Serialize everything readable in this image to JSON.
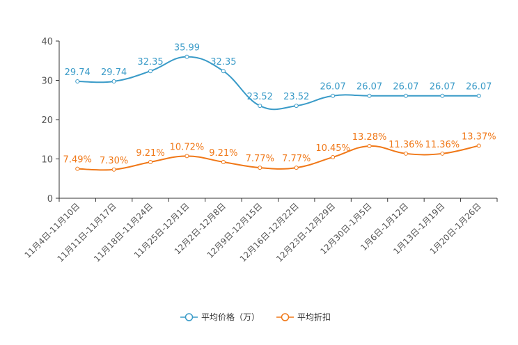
{
  "chart_data": {
    "type": "line",
    "title": "",
    "xlabel": "",
    "ylabel": "",
    "ylim": [
      0,
      40
    ],
    "yticks": [
      0,
      10,
      20,
      30,
      40
    ],
    "grid": false,
    "legend_position": "bottom-center",
    "categories": [
      "11月4日-11月10日",
      "11月11日-11月17日",
      "11月18日-11月24日",
      "11月25日-12月1日",
      "12月2日-12月8日",
      "12月9日-12月15日",
      "12月16日-12月22日",
      "12月23日-12月29日",
      "12月30日-1月5日",
      "1月6日-1月12日",
      "1月13日-1月19日",
      "1月20日-1月26日"
    ],
    "series": [
      {
        "name": "平均价格（万）",
        "color": "#3a9bc8",
        "values": [
          29.74,
          29.74,
          32.35,
          35.99,
          32.35,
          23.52,
          23.52,
          26.07,
          26.07,
          26.07,
          26.07,
          26.07
        ],
        "labels": [
          "29.74",
          "29.74",
          "32.35",
          "35.99",
          "32.35",
          "23.52",
          "23.52",
          "26.07",
          "26.07",
          "26.07",
          "26.07",
          "26.07"
        ]
      },
      {
        "name": "平均折扣",
        "color": "#f07818",
        "values": [
          7.49,
          7.3,
          9.21,
          10.72,
          9.21,
          7.77,
          7.77,
          10.45,
          13.28,
          11.36,
          11.36,
          13.37
        ],
        "labels": [
          "7.49%",
          "7.30%",
          "9.21%",
          "10.72%",
          "9.21%",
          "7.77%",
          "7.77%",
          "10.45%",
          "13.28%",
          "11.36%",
          "11.36%",
          "13.37%"
        ]
      }
    ]
  }
}
